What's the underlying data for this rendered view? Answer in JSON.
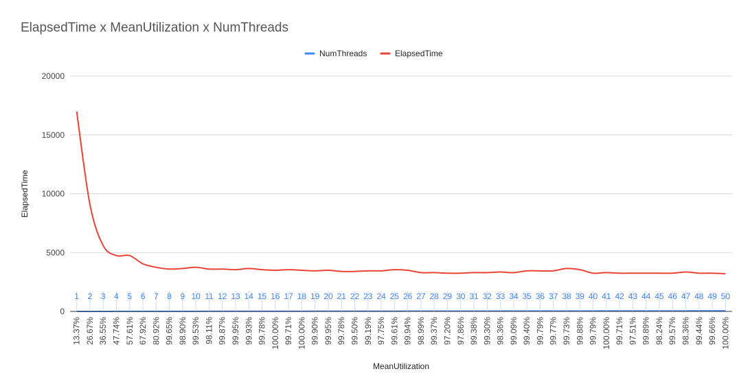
{
  "chart_data": {
    "type": "line",
    "title": "ElapsedTime x MeanUtilization x NumThreads",
    "xlabel": "MeanUtilization",
    "ylabel": "ElapsedTime",
    "ylim": [
      0,
      20000
    ],
    "yticks": [
      0,
      5000,
      10000,
      15000,
      20000
    ],
    "grid": true,
    "legend_position": "top",
    "categories": [
      "13.37%",
      "26.67%",
      "36.55%",
      "47.74%",
      "57.61%",
      "67.92%",
      "80.92%",
      "99.65%",
      "98.90%",
      "99.53%",
      "98.11%",
      "99.87%",
      "99.95%",
      "99.93%",
      "99.78%",
      "100.00%",
      "99.71%",
      "100.00%",
      "99.90%",
      "99.95%",
      "99.78%",
      "99.50%",
      "99.19%",
      "97.75%",
      "99.61%",
      "99.94%",
      "98.99%",
      "99.37%",
      "97.20%",
      "97.86%",
      "99.38%",
      "99.30%",
      "98.36%",
      "99.09%",
      "99.40%",
      "99.79%",
      "99.77%",
      "99.73%",
      "99.88%",
      "99.79%",
      "100.00%",
      "99.71%",
      "97.51%",
      "99.89%",
      "98.24%",
      "99.57%",
      "98.36%",
      "99.44%",
      "99.66%",
      "100.00%"
    ],
    "series": [
      {
        "name": "NumThreads",
        "color": "#4285f4",
        "values": [
          1,
          2,
          3,
          4,
          5,
          6,
          7,
          8,
          9,
          10,
          11,
          12,
          13,
          14,
          15,
          16,
          17,
          18,
          19,
          20,
          21,
          22,
          23,
          24,
          25,
          26,
          27,
          28,
          29,
          30,
          31,
          32,
          33,
          34,
          35,
          36,
          37,
          38,
          39,
          40,
          41,
          42,
          43,
          44,
          45,
          46,
          47,
          48,
          49,
          50
        ],
        "data_labels": [
          "1",
          "2",
          "3",
          "4",
          "5",
          "6",
          "7",
          "8",
          "9",
          "10",
          "11",
          "12",
          "13",
          "14",
          "15",
          "16",
          "17",
          "18",
          "19",
          "20",
          "21",
          "22",
          "23",
          "24",
          "25",
          "26",
          "27",
          "28",
          "29",
          "30",
          "31",
          "32",
          "33",
          "34",
          "35",
          "36",
          "37",
          "38",
          "39",
          "40",
          "41",
          "42",
          "43",
          "44",
          "45",
          "46",
          "47",
          "48",
          "49",
          "50"
        ]
      },
      {
        "name": "ElapsedTime",
        "color": "#ea4335",
        "values": [
          17000,
          9100,
          5600,
          4750,
          4750,
          4050,
          3750,
          3600,
          3650,
          3750,
          3600,
          3600,
          3550,
          3650,
          3550,
          3500,
          3550,
          3500,
          3450,
          3500,
          3400,
          3400,
          3450,
          3450,
          3550,
          3500,
          3300,
          3300,
          3250,
          3250,
          3300,
          3300,
          3350,
          3300,
          3450,
          3450,
          3450,
          3650,
          3550,
          3250,
          3300,
          3250,
          3250,
          3250,
          3250,
          3250,
          3350,
          3250,
          3250,
          3200
        ]
      }
    ]
  }
}
